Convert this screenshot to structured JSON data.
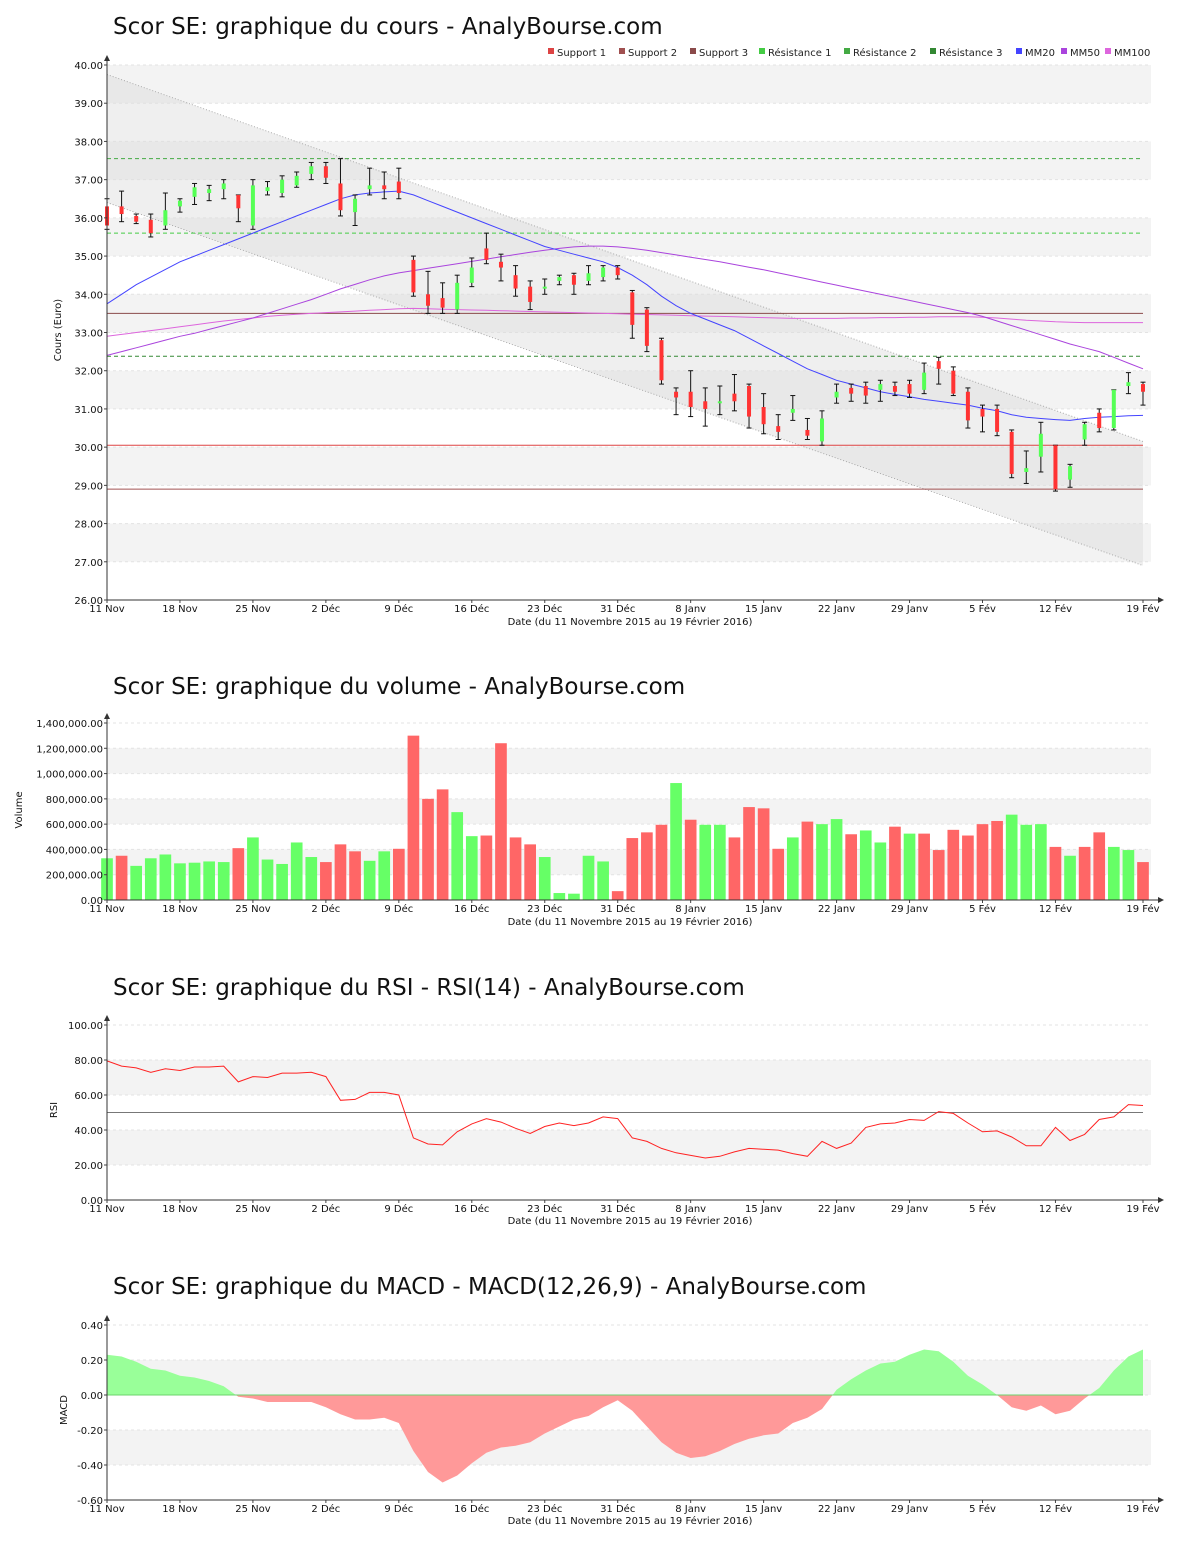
{
  "colors": {
    "bull": "#55ff55",
    "bear": "#ff3333",
    "vol_up": "#66ff66",
    "vol_down": "#ff6666",
    "rsi_line": "#ff2222",
    "macd_pos": "#99ff99",
    "macd_neg": "#ff9999",
    "support1": "#dd4444",
    "support2": "#a05050",
    "support3": "#8a4a4a",
    "res1": "#44cc44",
    "res2": "#44aa44",
    "res3": "#338833",
    "mm20": "#4444ff",
    "mm50": "#aa44dd",
    "mm100": "#dd66dd"
  },
  "chart_data": [
    {
      "type": "candlestick",
      "title": "Scor SE: graphique du cours - AnalyBourse.com",
      "xlabel": "Date (du 11 Novembre 2015 au 19 Février 2016)",
      "ylabel": "Cours (Euro)",
      "ylim": [
        26,
        40
      ],
      "yticks": [
        "26.00",
        "27.00",
        "28.00",
        "29.00",
        "30.00",
        "31.00",
        "32.00",
        "33.00",
        "34.00",
        "35.00",
        "36.00",
        "37.00",
        "38.00",
        "39.00",
        "40.00"
      ],
      "xticks": [
        "11 Nov",
        "18 Nov",
        "25 Nov",
        "2 Déc",
        "9 Déc",
        "16 Déc",
        "23 Déc",
        "31 Déc",
        "8 Janv",
        "15 Janv",
        "22 Janv",
        "29 Janv",
        "5 Fév",
        "12 Fév",
        "19 Fév"
      ],
      "legend": [
        "Support 1",
        "Support 2",
        "Support 3",
        "Résistance 1",
        "Résistance 2",
        "Résistance 3",
        "MM20",
        "MM50",
        "MM100"
      ],
      "legend_position": "top-right",
      "levels": {
        "support1": 30.05,
        "support2": 28.9,
        "support3": 33.5,
        "resistance1": 35.6,
        "resistance2": 37.55,
        "resistance3": 32.38
      },
      "channel": {
        "upper": [
          39.75,
          30.15
        ],
        "lower": [
          36.4,
          26.9
        ]
      },
      "candles": [
        [
          36.3,
          35.8,
          36.5,
          35.7
        ],
        [
          36.3,
          36.1,
          36.7,
          35.9
        ],
        [
          36.05,
          35.9,
          36.1,
          35.85
        ],
        [
          35.95,
          35.6,
          36.1,
          35.5
        ],
        [
          35.8,
          36.2,
          36.65,
          35.7
        ],
        [
          36.3,
          36.45,
          36.5,
          36.15
        ],
        [
          36.55,
          36.8,
          36.9,
          36.35
        ],
        [
          36.65,
          36.75,
          36.85,
          36.45
        ],
        [
          36.75,
          36.9,
          37.0,
          36.5
        ],
        [
          36.6,
          36.25,
          36.6,
          35.9
        ],
        [
          35.8,
          36.85,
          37.0,
          35.7
        ],
        [
          36.7,
          36.8,
          36.95,
          36.6
        ],
        [
          36.65,
          37.0,
          37.1,
          36.55
        ],
        [
          36.85,
          37.1,
          37.2,
          36.8
        ],
        [
          37.15,
          37.35,
          37.45,
          37.0
        ],
        [
          37.35,
          37.05,
          37.45,
          36.9
        ],
        [
          36.9,
          36.2,
          37.55,
          36.05
        ],
        [
          36.15,
          36.5,
          36.6,
          35.8
        ],
        [
          36.75,
          36.85,
          37.3,
          36.6
        ],
        [
          36.85,
          36.75,
          37.2,
          36.5
        ],
        [
          36.95,
          36.65,
          37.3,
          36.5
        ],
        [
          34.9,
          34.05,
          35.0,
          33.95
        ],
        [
          34.0,
          33.7,
          34.6,
          33.5
        ],
        [
          33.9,
          33.65,
          34.3,
          33.5
        ],
        [
          33.6,
          34.3,
          34.5,
          33.5
        ],
        [
          34.3,
          34.7,
          34.95,
          34.2
        ],
        [
          35.2,
          34.9,
          35.6,
          34.8
        ],
        [
          34.85,
          34.7,
          35.05,
          34.35
        ],
        [
          34.5,
          34.15,
          34.75,
          33.95
        ],
        [
          34.2,
          33.8,
          34.35,
          33.6
        ],
        [
          34.15,
          34.2,
          34.4,
          34.0
        ],
        [
          34.35,
          34.45,
          34.5,
          34.25
        ],
        [
          34.5,
          34.25,
          34.55,
          34.0
        ],
        [
          34.35,
          34.55,
          34.75,
          34.25
        ],
        [
          34.45,
          34.7,
          34.75,
          34.35
        ],
        [
          34.7,
          34.5,
          34.75,
          34.4
        ],
        [
          34.05,
          33.2,
          34.1,
          32.85
        ],
        [
          33.6,
          32.65,
          33.65,
          32.5
        ],
        [
          32.8,
          31.75,
          32.85,
          31.65
        ],
        [
          31.45,
          31.3,
          31.55,
          30.85
        ],
        [
          31.45,
          31.05,
          32.0,
          30.8
        ],
        [
          31.2,
          31.0,
          31.55,
          30.55
        ],
        [
          31.15,
          31.2,
          31.6,
          30.85
        ],
        [
          31.4,
          31.2,
          31.9,
          30.95
        ],
        [
          31.6,
          30.8,
          31.65,
          30.5
        ],
        [
          31.05,
          30.6,
          31.4,
          30.35
        ],
        [
          30.55,
          30.4,
          30.85,
          30.2
        ],
        [
          30.9,
          31.0,
          31.35,
          30.7
        ],
        [
          30.45,
          30.3,
          30.75,
          30.2
        ],
        [
          30.15,
          30.75,
          30.95,
          30.05
        ],
        [
          31.3,
          31.45,
          31.65,
          31.15
        ],
        [
          31.55,
          31.4,
          31.65,
          31.2
        ],
        [
          31.6,
          31.35,
          31.7,
          31.15
        ],
        [
          31.5,
          31.65,
          31.75,
          31.2
        ],
        [
          31.6,
          31.45,
          31.7,
          31.35
        ],
        [
          31.65,
          31.4,
          31.75,
          31.3
        ],
        [
          31.5,
          31.95,
          32.2,
          31.4
        ],
        [
          32.25,
          32.05,
          32.35,
          31.65
        ],
        [
          32.0,
          31.4,
          32.1,
          31.35
        ],
        [
          31.45,
          30.7,
          31.55,
          30.5
        ],
        [
          31.0,
          30.8,
          31.1,
          30.4
        ],
        [
          31.0,
          30.4,
          31.1,
          30.3
        ],
        [
          30.4,
          29.3,
          30.45,
          29.2
        ],
        [
          29.35,
          29.45,
          29.9,
          29.05
        ],
        [
          29.75,
          30.35,
          30.65,
          29.35
        ],
        [
          30.05,
          28.9,
          30.05,
          28.85
        ],
        [
          29.15,
          29.5,
          29.55,
          28.95
        ],
        [
          30.2,
          30.6,
          30.65,
          30.05
        ],
        [
          30.9,
          30.5,
          31.0,
          30.4
        ],
        [
          30.5,
          31.5,
          31.5,
          30.45
        ],
        [
          31.6,
          31.7,
          31.95,
          31.4
        ],
        [
          31.65,
          31.45,
          31.7,
          31.1
        ]
      ],
      "mm20": [
        33.75,
        34.0,
        34.25,
        34.45,
        34.65,
        34.85,
        35.0,
        35.15,
        35.3,
        35.45,
        35.6,
        35.75,
        35.9,
        36.05,
        36.2,
        36.35,
        36.5,
        36.6,
        36.65,
        36.68,
        36.7,
        36.6,
        36.45,
        36.3,
        36.15,
        36.0,
        35.85,
        35.7,
        35.55,
        35.4,
        35.25,
        35.15,
        35.05,
        34.95,
        34.85,
        34.7,
        34.5,
        34.25,
        33.95,
        33.7,
        33.5,
        33.35,
        33.2,
        33.05,
        32.85,
        32.65,
        32.45,
        32.25,
        32.05,
        31.9,
        31.75,
        31.65,
        31.55,
        31.45,
        31.38,
        31.32,
        31.25,
        31.2,
        31.15,
        31.1,
        31.02,
        30.95,
        30.85,
        30.78,
        30.75,
        30.72,
        30.7,
        30.75,
        30.78,
        30.8,
        30.82,
        30.83
      ],
      "mm50": [
        32.4,
        32.5,
        32.6,
        32.7,
        32.8,
        32.9,
        32.98,
        33.08,
        33.18,
        33.28,
        33.38,
        33.5,
        33.62,
        33.74,
        33.86,
        34.0,
        34.14,
        34.26,
        34.38,
        34.48,
        34.56,
        34.62,
        34.68,
        34.74,
        34.8,
        34.86,
        34.92,
        34.98,
        35.04,
        35.1,
        35.15,
        35.2,
        35.24,
        35.26,
        35.26,
        35.24,
        35.2,
        35.15,
        35.09,
        35.03,
        34.97,
        34.91,
        34.85,
        34.78,
        34.71,
        34.64,
        34.56,
        34.48,
        34.4,
        34.32,
        34.24,
        34.16,
        34.08,
        34.0,
        33.92,
        33.84,
        33.76,
        33.68,
        33.6,
        33.52,
        33.42,
        33.3,
        33.18,
        33.06,
        32.94,
        32.82,
        32.7,
        32.6,
        32.5,
        32.35,
        32.2,
        32.05
      ],
      "mm100": [
        32.9,
        32.95,
        33.0,
        33.05,
        33.1,
        33.15,
        33.2,
        33.25,
        33.3,
        33.34,
        33.38,
        33.42,
        33.45,
        33.48,
        33.5,
        33.52,
        33.54,
        33.56,
        33.58,
        33.6,
        33.62,
        33.63,
        33.62,
        33.61,
        33.6,
        33.59,
        33.58,
        33.57,
        33.56,
        33.55,
        33.54,
        33.53,
        33.52,
        33.51,
        33.5,
        33.49,
        33.48,
        33.47,
        33.46,
        33.45,
        33.44,
        33.43,
        33.42,
        33.41,
        33.4,
        33.39,
        33.38,
        33.37,
        33.37,
        33.37,
        33.37,
        33.38,
        33.38,
        33.39,
        33.39,
        33.4,
        33.4,
        33.41,
        33.41,
        33.41,
        33.4,
        33.38,
        33.35,
        33.32,
        33.3,
        33.28,
        33.27,
        33.26,
        33.26,
        33.26,
        33.26,
        33.26
      ]
    },
    {
      "type": "bar",
      "title": "Scor SE: graphique du volume - AnalyBourse.com",
      "xlabel": "Date (du 11 Novembre 2015 au 19 Février 2016)",
      "ylabel": "Volume",
      "ylim": [
        0,
        1400000
      ],
      "yticks": [
        "0.00",
        "200,000.00",
        "400,000.00",
        "600,000.00",
        "800,000.00",
        "1,000,000.00",
        "1,200,000.00",
        "1,400,000.00"
      ],
      "xticks": [
        "11 Nov",
        "18 Nov",
        "25 Nov",
        "2 Déc",
        "9 Déc",
        "16 Déc",
        "23 Déc",
        "31 Déc",
        "8 Janv",
        "15 Janv",
        "22 Janv",
        "29 Janv",
        "5 Fév",
        "12 Fév",
        "19 Fév"
      ],
      "values": [
        330000,
        350000,
        270000,
        330000,
        360000,
        290000,
        295000,
        305000,
        300000,
        410000,
        495000,
        320000,
        285000,
        455000,
        340000,
        300000,
        440000,
        385000,
        310000,
        385000,
        405000,
        1300000,
        800000,
        875000,
        695000,
        505000,
        510000,
        1240000,
        495000,
        440000,
        340000,
        55000,
        50000,
        350000,
        305000,
        70000,
        490000,
        535000,
        595000,
        925000,
        635000,
        595000,
        595000,
        495000,
        735000,
        725000,
        405000,
        495000,
        620000,
        600000,
        640000,
        520000,
        550000,
        455000,
        580000,
        525000,
        525000,
        395000,
        555000,
        510000,
        600000,
        625000,
        675000,
        595000,
        600000,
        420000,
        350000,
        420000,
        535000,
        420000,
        395000,
        300000
      ],
      "up": [
        true,
        false,
        true,
        true,
        true,
        true,
        true,
        true,
        true,
        false,
        true,
        true,
        true,
        true,
        true,
        false,
        false,
        false,
        true,
        true,
        false,
        false,
        false,
        false,
        true,
        true,
        false,
        false,
        false,
        false,
        true,
        true,
        true,
        true,
        true,
        false,
        false,
        false,
        false,
        true,
        false,
        true,
        true,
        false,
        false,
        false,
        false,
        true,
        false,
        true,
        true,
        false,
        true,
        true,
        false,
        true,
        false,
        false,
        false,
        false,
        false,
        false,
        true,
        true,
        true,
        false,
        true,
        false,
        false,
        true,
        true,
        false
      ]
    },
    {
      "type": "line",
      "title": "Scor SE: graphique du RSI - RSI(14) - AnalyBourse.com",
      "xlabel": "Date (du 11 Novembre 2015 au 19 Février 2016)",
      "ylabel": "RSI",
      "ylim": [
        0,
        100
      ],
      "yticks": [
        "0.00",
        "20.00",
        "40.00",
        "60.00",
        "80.00",
        "100.00"
      ],
      "xticks": [
        "11 Nov",
        "18 Nov",
        "25 Nov",
        "2 Déc",
        "9 Déc",
        "16 Déc",
        "23 Déc",
        "31 Déc",
        "8 Janv",
        "15 Janv",
        "22 Janv",
        "29 Janv",
        "5 Fév",
        "12 Fév",
        "19 Fév"
      ],
      "reference": 50,
      "values": [
        79.5,
        76.5,
        75.5,
        73.0,
        75.0,
        74.0,
        76.0,
        76.0,
        76.5,
        67.5,
        70.5,
        70.0,
        72.5,
        72.5,
        73.0,
        70.5,
        57.0,
        57.5,
        61.5,
        61.5,
        60.0,
        35.5,
        32.0,
        31.5,
        39.0,
        43.5,
        46.5,
        44.5,
        41.0,
        38.0,
        42.0,
        44.0,
        42.5,
        44.0,
        47.5,
        46.5,
        35.5,
        33.5,
        29.5,
        27.0,
        25.5,
        24.0,
        25.0,
        27.5,
        29.5,
        29.0,
        28.5,
        26.5,
        25.0,
        33.5,
        29.5,
        32.5,
        41.5,
        43.5,
        44.0,
        46.0,
        45.5,
        50.5,
        49.5,
        44.0,
        39.0,
        39.5,
        36.0,
        31.0,
        31.0,
        41.5,
        34.0,
        37.5,
        46.0,
        47.5,
        54.5,
        54.0
      ]
    },
    {
      "type": "area",
      "title": "Scor SE: graphique du MACD - MACD(12,26,9) - AnalyBourse.com",
      "xlabel": "Date (du 11 Novembre 2015 au 19 Février 2016)",
      "ylabel": "MACD",
      "ylim": [
        -0.6,
        0.4
      ],
      "yticks": [
        "-0.60",
        "-0.40",
        "-0.20",
        "0.00",
        "0.20",
        "0.40"
      ],
      "xticks": [
        "11 Nov",
        "18 Nov",
        "25 Nov",
        "2 Déc",
        "9 Déc",
        "16 Déc",
        "23 Déc",
        "31 Déc",
        "8 Janv",
        "15 Janv",
        "22 Janv",
        "29 Janv",
        "5 Fév",
        "12 Fév",
        "19 Fév"
      ],
      "values": [
        0.23,
        0.22,
        0.19,
        0.15,
        0.14,
        0.11,
        0.1,
        0.08,
        0.05,
        -0.01,
        -0.02,
        -0.04,
        -0.04,
        -0.04,
        -0.04,
        -0.07,
        -0.11,
        -0.14,
        -0.14,
        -0.13,
        -0.16,
        -0.32,
        -0.44,
        -0.5,
        -0.46,
        -0.39,
        -0.33,
        -0.3,
        -0.29,
        -0.27,
        -0.22,
        -0.18,
        -0.14,
        -0.12,
        -0.07,
        -0.03,
        -0.09,
        -0.18,
        -0.27,
        -0.33,
        -0.36,
        -0.35,
        -0.32,
        -0.28,
        -0.25,
        -0.23,
        -0.22,
        -0.16,
        -0.13,
        -0.08,
        0.03,
        0.09,
        0.14,
        0.18,
        0.19,
        0.23,
        0.26,
        0.25,
        0.19,
        0.11,
        0.06,
        0.0,
        -0.07,
        -0.09,
        -0.06,
        -0.11,
        -0.09,
        -0.02,
        0.04,
        0.14,
        0.22,
        0.26
      ]
    }
  ]
}
